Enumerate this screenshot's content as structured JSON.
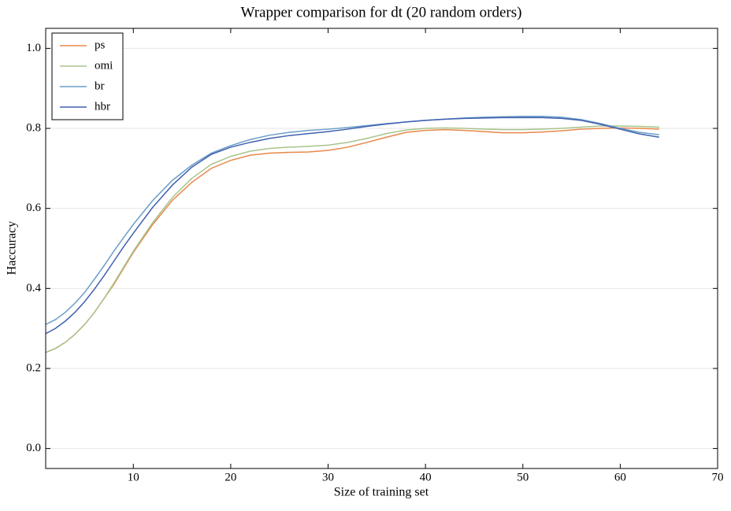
{
  "chart_data": {
    "type": "line",
    "title": "Wrapper comparison for dt (20 random orders)",
    "x_label": "Size of training set",
    "y_label": "Haccuracy",
    "x": [
      1,
      2,
      3,
      4,
      5,
      6,
      7,
      8,
      9,
      10,
      12,
      14,
      16,
      18,
      20,
      22,
      24,
      26,
      28,
      30,
      32,
      34,
      36,
      38,
      40,
      42,
      44,
      46,
      48,
      50,
      52,
      54,
      56,
      58,
      60,
      62,
      64
    ],
    "series": [
      {
        "name": "ps",
        "color": "#e8884a",
        "values": [
          0.24,
          0.25,
          0.265,
          0.285,
          0.31,
          0.34,
          0.375,
          0.41,
          0.45,
          0.49,
          0.56,
          0.62,
          0.665,
          0.7,
          0.72,
          0.733,
          0.738,
          0.74,
          0.741,
          0.745,
          0.753,
          0.765,
          0.778,
          0.79,
          0.795,
          0.797,
          0.795,
          0.792,
          0.789,
          0.789,
          0.791,
          0.794,
          0.798,
          0.8,
          0.801,
          0.8,
          0.798
        ]
      },
      {
        "name": "omi",
        "color": "#a8c48c",
        "values": [
          0.24,
          0.25,
          0.265,
          0.285,
          0.31,
          0.34,
          0.375,
          0.413,
          0.453,
          0.493,
          0.565,
          0.627,
          0.675,
          0.71,
          0.73,
          0.743,
          0.75,
          0.753,
          0.755,
          0.758,
          0.765,
          0.775,
          0.787,
          0.796,
          0.8,
          0.801,
          0.8,
          0.798,
          0.797,
          0.797,
          0.798,
          0.8,
          0.803,
          0.806,
          0.806,
          0.805,
          0.803
        ]
      },
      {
        "name": "br",
        "color": "#6a9ec8",
        "values": [
          0.31,
          0.322,
          0.34,
          0.363,
          0.39,
          0.423,
          0.457,
          0.493,
          0.527,
          0.56,
          0.62,
          0.67,
          0.708,
          0.738,
          0.757,
          0.772,
          0.783,
          0.79,
          0.795,
          0.798,
          0.802,
          0.807,
          0.812,
          0.816,
          0.82,
          0.823,
          0.826,
          0.828,
          0.829,
          0.83,
          0.83,
          0.828,
          0.822,
          0.812,
          0.8,
          0.79,
          0.784
        ]
      },
      {
        "name": "hbr",
        "color": "#4060b0",
        "values": [
          0.287,
          0.3,
          0.318,
          0.34,
          0.367,
          0.398,
          0.432,
          0.468,
          0.504,
          0.538,
          0.603,
          0.658,
          0.703,
          0.735,
          0.753,
          0.765,
          0.775,
          0.782,
          0.787,
          0.792,
          0.798,
          0.805,
          0.811,
          0.816,
          0.82,
          0.823,
          0.825,
          0.826,
          0.827,
          0.827,
          0.827,
          0.825,
          0.82,
          0.81,
          0.798,
          0.786,
          0.778
        ]
      }
    ],
    "xlim": [
      1,
      70
    ],
    "xticks": [
      10,
      20,
      30,
      40,
      50,
      60,
      70
    ],
    "ylim": [
      -0.05,
      1.05
    ],
    "yticks": [
      {
        "value": 0,
        "label": "0.0"
      },
      0.2,
      0.4,
      0.6,
      0.8,
      {
        "value": 1,
        "label": "1.0"
      }
    ],
    "grid": true,
    "legend": "upper left"
  }
}
